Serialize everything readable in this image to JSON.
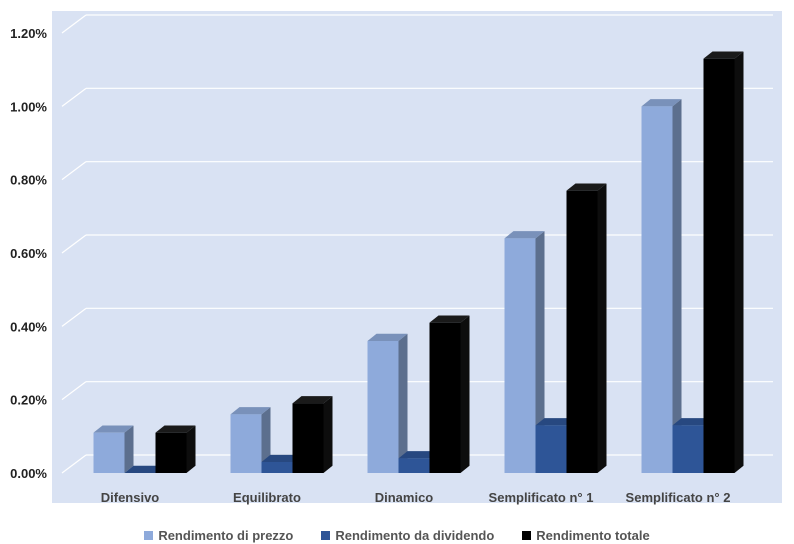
{
  "chart_data": {
    "type": "bar",
    "style": "3d-clustered-column",
    "categories": [
      "Difensivo",
      "Equilibrato",
      "Dinamico",
      "Semplificato n° 1",
      "Semplificato n° 2"
    ],
    "series": [
      {
        "name": "Rendimento di prezzo",
        "values": [
          0.0011,
          0.0016,
          0.0036,
          0.0064,
          0.01
        ],
        "color": "#8eaadb"
      },
      {
        "name": "Rendimento da dividendo",
        "values": [
          0.0,
          0.0003,
          0.0004,
          0.0013,
          0.0013
        ],
        "color": "#2e5597"
      },
      {
        "name": "Rendimento totale",
        "values": [
          0.0011,
          0.0019,
          0.0041,
          0.0077,
          0.0113
        ],
        "color": "#000000"
      }
    ],
    "yticks": [
      "0.00%",
      "0.20%",
      "0.40%",
      "0.60%",
      "0.80%",
      "1.00%",
      "1.20%"
    ],
    "ylim": [
      0,
      0.012
    ],
    "grid": true,
    "legend": "bottom",
    "background": "#d9e2f3"
  }
}
